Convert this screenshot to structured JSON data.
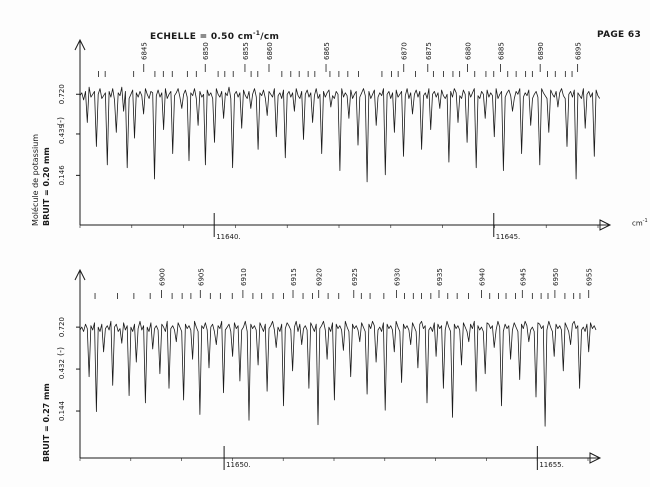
{
  "header": {
    "scale_prefix": "ECHELLE = ",
    "scale_value": "0.50 cm",
    "scale_exp": "-1",
    "scale_suffix": "/cm",
    "page": "PAGE 63"
  },
  "left_labels": {
    "molecule": "Molécule de potassium"
  },
  "colors": {
    "ink": "#1a1a1a",
    "paper": "#fdfdfd"
  },
  "chart_data": [
    {
      "type": "line",
      "panel": "upper",
      "x_unit": "cm-1",
      "x_unit_label": "cm",
      "x_unit_exp": "-1",
      "xlim": [
        11637.6,
        11646.9
      ],
      "x_ticks": [
        {
          "value": 11640,
          "label": "11640."
        },
        {
          "value": 11645,
          "label": "11645."
        }
      ],
      "y_ticks": [
        {
          "value": 0.72,
          "label": "0.720"
        },
        {
          "value": 0.439,
          "label": "0.439"
        },
        {
          "value": 0.146,
          "label": "0.146"
        }
      ],
      "y_marker": "(-)",
      "noise_label": "BRUIT =",
      "noise_value": "0.20 mm",
      "ylim": [
        0.0,
        0.92
      ],
      "line_numbers": [
        "6845",
        "6850",
        "6855",
        "6860",
        "6865",
        "6870",
        "6875",
        "6880",
        "6885",
        "6890",
        "6895"
      ],
      "line_number_x": [
        11638.74,
        11639.84,
        11640.55,
        11640.98,
        11642.0,
        11643.39,
        11643.82,
        11644.53,
        11645.12,
        11645.83,
        11646.5
      ],
      "line_ticks_x": [
        11637.93,
        11638.05,
        11638.56,
        11638.94,
        11639.09,
        11639.25,
        11639.52,
        11639.68,
        11640.07,
        11640.19,
        11640.34,
        11640.66,
        11640.78,
        11641.21,
        11641.37,
        11641.52,
        11641.68,
        11641.8,
        11642.07,
        11642.23,
        11642.39,
        11642.58,
        11643.0,
        11643.17,
        11643.29,
        11643.6,
        11643.92,
        11644.1,
        11644.27,
        11644.39,
        11644.66,
        11644.86,
        11645.0,
        11645.25,
        11645.4,
        11645.57,
        11645.69,
        11645.96,
        11646.1,
        11646.28,
        11646.4
      ],
      "series": [
        {
          "x_start": 11637.6,
          "x_step": 0.0325,
          "values": [
            0.71,
            0.73,
            0.68,
            0.74,
            0.52,
            0.77,
            0.7,
            0.72,
            0.74,
            0.35,
            0.72,
            0.76,
            0.69,
            0.71,
            0.73,
            0.22,
            0.74,
            0.7,
            0.76,
            0.68,
            0.45,
            0.73,
            0.71,
            0.77,
            0.6,
            0.74,
            0.2,
            0.69,
            0.72,
            0.75,
            0.41,
            0.73,
            0.7,
            0.74,
            0.71,
            0.58,
            0.76,
            0.72,
            0.69,
            0.74,
            0.73,
            0.12,
            0.71,
            0.75,
            0.7,
            0.73,
            0.47,
            0.76,
            0.69,
            0.72,
            0.74,
            0.3,
            0.71,
            0.73,
            0.76,
            0.7,
            0.62,
            0.72,
            0.75,
            0.7,
            0.25,
            0.73,
            0.71,
            0.76,
            0.69,
            0.5,
            0.74,
            0.7,
            0.72,
            0.22,
            0.75,
            0.71,
            0.73,
            0.69,
            0.38,
            0.76,
            0.72,
            0.7,
            0.74,
            0.55,
            0.73,
            0.71,
            0.77,
            0.69,
            0.2,
            0.72,
            0.74,
            0.7,
            0.73,
            0.48,
            0.75,
            0.71,
            0.69,
            0.74,
            0.62,
            0.72,
            0.76,
            0.7,
            0.33,
            0.73,
            0.71,
            0.75,
            0.69,
            0.57,
            0.74,
            0.72,
            0.7,
            0.76,
            0.42,
            0.71,
            0.73,
            0.69,
            0.75,
            0.27,
            0.72,
            0.74,
            0.7,
            0.73,
            0.6,
            0.76,
            0.71,
            0.69,
            0.74,
            0.4,
            0.72,
            0.75,
            0.7,
            0.73,
            0.52,
            0.71,
            0.76,
            0.69,
            0.72,
            0.3,
            0.74,
            0.7,
            0.73,
            0.75,
            0.63,
            0.71,
            0.69,
            0.74,
            0.72,
            0.18,
            0.76,
            0.7,
            0.73,
            0.71,
            0.55,
            0.75,
            0.69,
            0.72,
            0.74,
            0.36,
            0.7,
            0.73,
            0.76,
            0.71,
            0.1,
            0.74,
            0.69,
            0.72,
            0.75,
            0.5,
            0.7,
            0.73,
            0.71,
            0.76,
            0.15,
            0.72,
            0.74,
            0.69,
            0.73,
            0.45,
            0.75,
            0.7,
            0.72,
            0.74,
            0.28,
            0.71,
            0.76,
            0.69,
            0.73,
            0.58,
            0.72,
            0.75,
            0.7,
            0.74,
            0.33,
            0.71,
            0.73,
            0.69,
            0.76,
            0.47,
            0.72,
            0.74,
            0.7,
            0.73,
            0.62,
            0.75,
            0.71,
            0.69,
            0.72,
            0.24,
            0.74,
            0.7,
            0.76,
            0.73,
            0.52,
            0.71,
            0.69,
            0.75,
            0.72,
            0.38,
            0.74,
            0.7,
            0.73,
            0.76,
            0.2,
            0.71,
            0.69,
            0.74,
            0.72,
            0.55,
            0.75,
            0.7,
            0.73,
            0.71,
            0.42,
            0.76,
            0.69,
            0.72,
            0.74,
            0.18,
            0.7,
            0.73,
            0.75,
            0.71,
            0.6,
            0.69,
            0.74,
            0.72,
            0.76,
            0.3,
            0.7,
            0.73,
            0.71,
            0.75,
            0.5,
            0.69,
            0.72,
            0.74,
            0.7,
            0.22,
            0.76,
            0.73,
            0.71,
            0.69,
            0.45,
            0.75,
            0.72,
            0.7,
            0.74,
            0.63,
            0.73,
            0.76,
            0.71,
            0.69,
            0.35,
            0.72,
            0.74,
            0.7,
            0.75,
            0.12,
            0.73,
            0.71,
            0.69,
            0.76,
            0.48,
            0.72,
            0.74,
            0.7,
            0.73,
            0.28,
            0.75,
            0.71,
            0.69,
            0.72
          ]
        }
      ]
    },
    {
      "type": "line",
      "panel": "lower",
      "x_unit": "cm-1",
      "xlim": [
        11647.7,
        11656.0
      ],
      "x_ticks": [
        {
          "value": 11650,
          "label": "11650."
        },
        {
          "value": 11655,
          "label": "11655."
        }
      ],
      "y_ticks": [
        {
          "value": 0.72,
          "label": "0.720"
        },
        {
          "value": 0.432,
          "label": "0.432"
        },
        {
          "value": 0.144,
          "label": "0.144"
        }
      ],
      "y_marker": "(-)",
      "noise_label": "BRUIT =",
      "noise_value": "0.27 mm",
      "ylim": [
        0.0,
        0.92
      ],
      "line_numbers": [
        "6900",
        "6905",
        "6910",
        "6915",
        "6920",
        "6925",
        "6930",
        "6935",
        "6940",
        "6945",
        "6950",
        "6955"
      ],
      "line_number_x": [
        11649.0,
        11649.62,
        11650.3,
        11651.1,
        11651.51,
        11652.07,
        11652.75,
        11653.43,
        11654.11,
        11654.76,
        11655.28,
        11655.82
      ],
      "line_ticks_x": [
        11647.94,
        11648.3,
        11648.56,
        11648.82,
        11649.17,
        11649.33,
        11649.47,
        11649.78,
        11649.94,
        11650.13,
        11650.46,
        11650.6,
        11650.78,
        11650.95,
        11651.26,
        11651.41,
        11651.66,
        11651.83,
        11652.19,
        11652.33,
        11652.55,
        11652.88,
        11653.02,
        11653.15,
        11653.3,
        11653.57,
        11653.72,
        11653.9,
        11654.24,
        11654.38,
        11654.5,
        11654.65,
        11654.92,
        11655.06,
        11655.17,
        11655.44,
        11655.58,
        11655.68
      ],
      "series": [
        {
          "x_start": 11647.7,
          "x_step": 0.029,
          "values": [
            0.7,
            0.72,
            0.69,
            0.74,
            0.71,
            0.38,
            0.73,
            0.7,
            0.75,
            0.14,
            0.72,
            0.69,
            0.74,
            0.55,
            0.71,
            0.73,
            0.7,
            0.76,
            0.32,
            0.72,
            0.74,
            0.69,
            0.71,
            0.61,
            0.75,
            0.7,
            0.73,
            0.25,
            0.72,
            0.69,
            0.74,
            0.48,
            0.71,
            0.76,
            0.7,
            0.73,
            0.2,
            0.72,
            0.69,
            0.75,
            0.57,
            0.71,
            0.73,
            0.7,
            0.4,
            0.74,
            0.72,
            0.69,
            0.76,
            0.3,
            0.71,
            0.73,
            0.7,
            0.62,
            0.75,
            0.72,
            0.69,
            0.22,
            0.74,
            0.71,
            0.73,
            0.7,
            0.5,
            0.76,
            0.72,
            0.69,
            0.12,
            0.73,
            0.71,
            0.75,
            0.7,
            0.44,
            0.72,
            0.74,
            0.69,
            0.6,
            0.73,
            0.71,
            0.76,
            0.27,
            0.7,
            0.72,
            0.74,
            0.69,
            0.52,
            0.75,
            0.71,
            0.73,
            0.35,
            0.7,
            0.72,
            0.76,
            0.69,
            0.08,
            0.74,
            0.71,
            0.73,
            0.7,
            0.46,
            0.75,
            0.72,
            0.69,
            0.74,
            0.28,
            0.71,
            0.73,
            0.76,
            0.7,
            0.58,
            0.72,
            0.69,
            0.74,
            0.18,
            0.71,
            0.75,
            0.73,
            0.7,
            0.42,
            0.72,
            0.76,
            0.69,
            0.74,
            0.6,
            0.71,
            0.73,
            0.7,
            0.3,
            0.75,
            0.72,
            0.69,
            0.74,
            0.05,
            0.71,
            0.73,
            0.76,
            0.7,
            0.5,
            0.72,
            0.69,
            0.75,
            0.22,
            0.74,
            0.71,
            0.73,
            0.7,
            0.56,
            0.76,
            0.72,
            0.69,
            0.38,
            0.74,
            0.71,
            0.73,
            0.7,
            0.62,
            0.75,
            0.72,
            0.69,
            0.26,
            0.74,
            0.71,
            0.76,
            0.73,
            0.48,
            0.7,
            0.72,
            0.69,
            0.75,
            0.15,
            0.74,
            0.71,
            0.73,
            0.7,
            0.55,
            0.76,
            0.72,
            0.69,
            0.34,
            0.74,
            0.71,
            0.73,
            0.7,
            0.6,
            0.75,
            0.72,
            0.69,
            0.44,
            0.74,
            0.76,
            0.71,
            0.73,
            0.2,
            0.7,
            0.72,
            0.69,
            0.75,
            0.52,
            0.74,
            0.71,
            0.73,
            0.3,
            0.7,
            0.76,
            0.72,
            0.69,
            0.1,
            0.74,
            0.71,
            0.73,
            0.7,
            0.46,
            0.75,
            0.72,
            0.69,
            0.62,
            0.74,
            0.71,
            0.76,
            0.28,
            0.73,
            0.7,
            0.72,
            0.69,
            0.4,
            0.75,
            0.74,
            0.71,
            0.73,
            0.58,
            0.7,
            0.76,
            0.72,
            0.18,
            0.69,
            0.74,
            0.71,
            0.73,
            0.5,
            0.7,
            0.75,
            0.72,
            0.69,
            0.36,
            0.74,
            0.71,
            0.76,
            0.73,
            0.62,
            0.7,
            0.72,
            0.69,
            0.24,
            0.75,
            0.74,
            0.71,
            0.73,
            0.04,
            0.7,
            0.76,
            0.72,
            0.69,
            0.52,
            0.74,
            0.71,
            0.73,
            0.7,
            0.42,
            0.75,
            0.72,
            0.69,
            0.6,
            0.74,
            0.76,
            0.71,
            0.73,
            0.3,
            0.7,
            0.72,
            0.69,
            0.74,
            0.55,
            0.75,
            0.71,
            0.73,
            0.7
          ]
        }
      ]
    }
  ]
}
